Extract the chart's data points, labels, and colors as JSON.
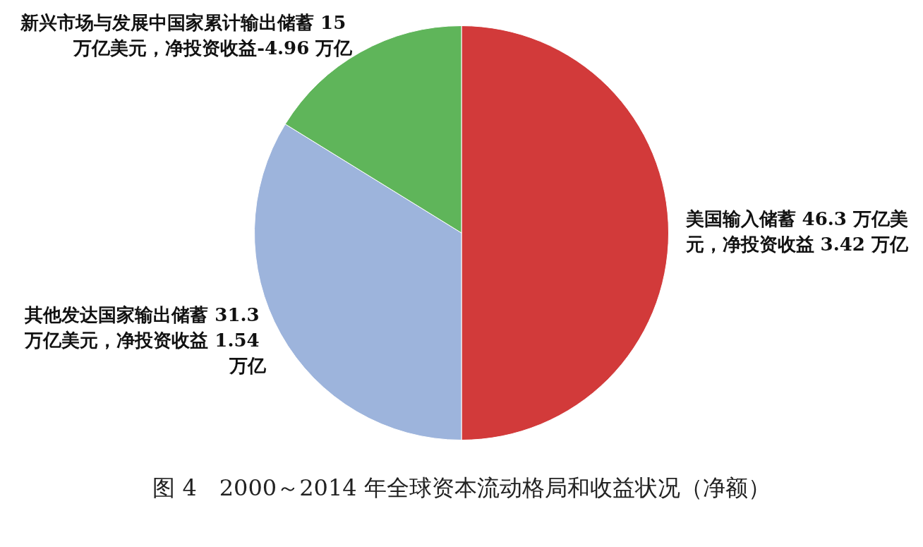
{
  "chart_data": {
    "type": "pie",
    "title": "图 4　2000～2014 年全球资本流动格局和收益状况（净额）",
    "categories": [
      "美国输入储蓄 46.3 万亿美元，净投资收益 3.42 万亿",
      "其他发达国家输出储蓄 31.3 万亿美元，净投资收益 1.54 万亿",
      "新兴市场与发展中国家累计输出储蓄 15 万亿美元，净投资收益-4.96 万亿"
    ],
    "values": [
      46.3,
      31.3,
      15
    ],
    "colors": [
      "#d23a3a",
      "#9db4dc",
      "#5fb55a"
    ],
    "legend": false
  }
}
